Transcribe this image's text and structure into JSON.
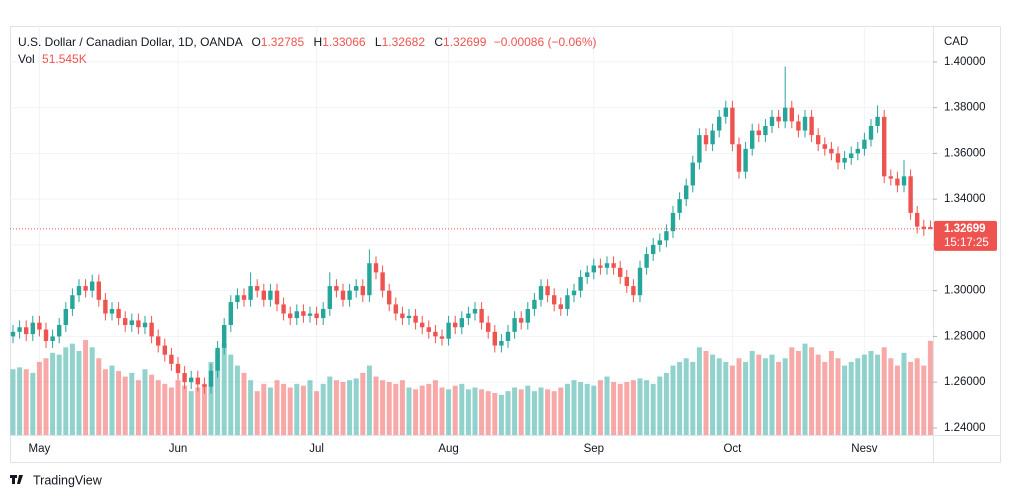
{
  "chart_data": {
    "type": "candlestick",
    "title": "U.S. Dollar / Canadian Dollar, 1D, OANDA",
    "legend_labels": {
      "open": "O",
      "high": "H",
      "low": "L",
      "close": "C",
      "volume": "Vol"
    },
    "change": "−0.00086 (−0.06%)",
    "volume_label": "51.545K",
    "y_axis_label": "CAD",
    "countdown": "15:17:25",
    "up_color": "#26a69a",
    "down_color": "#ef5350",
    "grid": true,
    "ylim": [
      1.2369,
      1.4157
    ],
    "yticks": [
      {
        "value": 1.24,
        "label": "1.24000"
      },
      {
        "value": 1.26,
        "label": "1.26000"
      },
      {
        "value": 1.28,
        "label": "1.28000"
      },
      {
        "value": 1.3,
        "label": "1.30000"
      },
      {
        "value": 1.32,
        "label": "1.32000"
      },
      {
        "value": 1.34,
        "label": "1.34000"
      },
      {
        "value": 1.36,
        "label": "1.36000"
      },
      {
        "value": 1.38,
        "label": "1.38000"
      },
      {
        "value": 1.4,
        "label": "1.40000"
      }
    ],
    "categories": [
      null,
      null,
      null,
      null,
      "May",
      null,
      null,
      null,
      null,
      null,
      null,
      null,
      null,
      null,
      null,
      null,
      null,
      null,
      null,
      null,
      null,
      null,
      null,
      null,
      null,
      "Jun",
      null,
      null,
      null,
      null,
      null,
      null,
      null,
      null,
      null,
      null,
      null,
      null,
      null,
      null,
      null,
      null,
      null,
      null,
      null,
      null,
      "Jul",
      null,
      null,
      null,
      null,
      null,
      null,
      null,
      null,
      null,
      null,
      null,
      null,
      null,
      null,
      null,
      null,
      null,
      null,
      null,
      "Aug",
      null,
      null,
      null,
      null,
      null,
      null,
      null,
      null,
      null,
      null,
      null,
      null,
      null,
      null,
      null,
      null,
      null,
      null,
      null,
      null,
      null,
      "Sep",
      null,
      null,
      null,
      null,
      null,
      null,
      null,
      null,
      null,
      null,
      null,
      null,
      null,
      null,
      null,
      null,
      null,
      null,
      null,
      null,
      "Oct",
      null,
      null,
      null,
      null,
      null,
      null,
      null,
      null,
      null,
      null,
      null,
      null,
      null,
      null,
      null,
      null,
      null,
      null,
      null,
      "Nesv",
      null,
      null,
      null,
      null,
      null,
      null,
      null,
      null,
      null,
      null
    ],
    "open": [
      1.28,
      1.282,
      1.284,
      1.281,
      1.286,
      1.283,
      1.278,
      1.28,
      1.285,
      1.292,
      1.298,
      1.302,
      1.3,
      1.304,
      1.296,
      1.29,
      1.292,
      1.288,
      1.285,
      1.287,
      1.284,
      1.286,
      1.28,
      1.276,
      1.272,
      1.268,
      1.264,
      1.26,
      1.262,
      1.259,
      1.258,
      1.265,
      1.275,
      1.285,
      1.295,
      1.298,
      1.296,
      1.302,
      1.3,
      1.296,
      1.3,
      1.294,
      1.29,
      1.288,
      1.291,
      1.289,
      1.29,
      1.288,
      1.292,
      1.302,
      1.3,
      1.296,
      1.3,
      1.302,
      1.298,
      1.312,
      1.308,
      1.3,
      1.294,
      1.29,
      1.288,
      1.289,
      1.286,
      1.284,
      1.282,
      1.28,
      1.279,
      1.286,
      1.284,
      1.288,
      1.29,
      1.292,
      1.286,
      1.282,
      1.276,
      1.278,
      1.282,
      1.288,
      1.286,
      1.292,
      1.296,
      1.302,
      1.298,
      1.294,
      1.292,
      1.298,
      1.3,
      1.306,
      1.308,
      1.311,
      1.31,
      1.312,
      1.31,
      1.306,
      1.302,
      1.298,
      1.31,
      1.316,
      1.32,
      1.322,
      1.326,
      1.334,
      1.34,
      1.346,
      1.356,
      1.368,
      1.364,
      1.37,
      1.376,
      1.38,
      1.364,
      1.352,
      1.362,
      1.37,
      1.368,
      1.372,
      1.376,
      1.374,
      1.38,
      1.374,
      1.37,
      1.376,
      1.368,
      1.364,
      1.362,
      1.36,
      1.356,
      1.358,
      1.36,
      1.362,
      1.366,
      1.372,
      1.376,
      1.35,
      1.349,
      1.346,
      1.35,
      1.334,
      1.328,
      1.32785
    ],
    "high": [
      1.285,
      1.287,
      1.287,
      1.289,
      1.289,
      1.286,
      1.283,
      1.288,
      1.295,
      1.301,
      1.305,
      1.305,
      1.307,
      1.307,
      1.299,
      1.295,
      1.295,
      1.291,
      1.29,
      1.29,
      1.289,
      1.289,
      1.283,
      1.279,
      1.275,
      1.271,
      1.267,
      1.265,
      1.265,
      1.262,
      1.268,
      1.278,
      1.288,
      1.298,
      1.301,
      1.301,
      1.308,
      1.305,
      1.303,
      1.303,
      1.303,
      1.297,
      1.293,
      1.294,
      1.294,
      1.293,
      1.293,
      1.295,
      1.308,
      1.305,
      1.303,
      1.303,
      1.305,
      1.305,
      1.318,
      1.315,
      1.311,
      1.303,
      1.297,
      1.293,
      1.292,
      1.292,
      1.289,
      1.287,
      1.285,
      1.283,
      1.289,
      1.289,
      1.291,
      1.293,
      1.295,
      1.295,
      1.289,
      1.285,
      1.281,
      1.285,
      1.291,
      1.291,
      1.295,
      1.299,
      1.305,
      1.305,
      1.301,
      1.297,
      1.301,
      1.303,
      1.309,
      1.311,
      1.314,
      1.314,
      1.315,
      1.315,
      1.313,
      1.309,
      1.305,
      1.313,
      1.319,
      1.323,
      1.325,
      1.329,
      1.337,
      1.343,
      1.349,
      1.359,
      1.371,
      1.371,
      1.373,
      1.379,
      1.383,
      1.383,
      1.367,
      1.365,
      1.373,
      1.373,
      1.375,
      1.379,
      1.379,
      1.398,
      1.383,
      1.377,
      1.379,
      1.379,
      1.371,
      1.367,
      1.365,
      1.363,
      1.361,
      1.363,
      1.365,
      1.369,
      1.375,
      1.381,
      1.379,
      1.353,
      1.352,
      1.357,
      1.353,
      1.337,
      1.331,
      1.33066
    ],
    "low": [
      1.277,
      1.279,
      1.278,
      1.278,
      1.28,
      1.275,
      1.275,
      1.277,
      1.282,
      1.289,
      1.295,
      1.297,
      1.297,
      1.293,
      1.287,
      1.287,
      1.285,
      1.282,
      1.282,
      1.281,
      1.281,
      1.277,
      1.273,
      1.269,
      1.265,
      1.261,
      1.257,
      1.257,
      1.256,
      1.255,
      1.255,
      1.262,
      1.272,
      1.282,
      1.292,
      1.293,
      1.293,
      1.297,
      1.293,
      1.293,
      1.291,
      1.287,
      1.285,
      1.285,
      1.286,
      1.286,
      1.285,
      1.285,
      1.289,
      1.297,
      1.293,
      1.293,
      1.297,
      1.295,
      1.295,
      1.305,
      1.297,
      1.291,
      1.287,
      1.285,
      1.285,
      1.283,
      1.281,
      1.279,
      1.277,
      1.276,
      1.276,
      1.281,
      1.281,
      1.285,
      1.287,
      1.283,
      1.279,
      1.273,
      1.273,
      1.275,
      1.279,
      1.283,
      1.283,
      1.289,
      1.293,
      1.295,
      1.291,
      1.289,
      1.289,
      1.295,
      1.297,
      1.303,
      1.305,
      1.307,
      1.307,
      1.307,
      1.303,
      1.299,
      1.295,
      1.295,
      1.307,
      1.313,
      1.317,
      1.319,
      1.323,
      1.331,
      1.337,
      1.343,
      1.353,
      1.361,
      1.361,
      1.367,
      1.373,
      1.361,
      1.349,
      1.349,
      1.359,
      1.365,
      1.365,
      1.369,
      1.371,
      1.371,
      1.371,
      1.367,
      1.367,
      1.365,
      1.361,
      1.359,
      1.357,
      1.353,
      1.353,
      1.355,
      1.357,
      1.359,
      1.363,
      1.369,
      1.347,
      1.346,
      1.343,
      1.343,
      1.331,
      1.325,
      1.324,
      1.32682
    ],
    "close": [
      1.282,
      1.284,
      1.281,
      1.286,
      1.283,
      1.278,
      1.28,
      1.285,
      1.292,
      1.298,
      1.302,
      1.3,
      1.304,
      1.296,
      1.29,
      1.292,
      1.288,
      1.285,
      1.287,
      1.284,
      1.286,
      1.28,
      1.276,
      1.272,
      1.268,
      1.264,
      1.26,
      1.262,
      1.259,
      1.258,
      1.265,
      1.275,
      1.285,
      1.295,
      1.298,
      1.296,
      1.302,
      1.3,
      1.296,
      1.3,
      1.294,
      1.29,
      1.288,
      1.291,
      1.289,
      1.29,
      1.288,
      1.292,
      1.302,
      1.3,
      1.296,
      1.3,
      1.302,
      1.298,
      1.312,
      1.308,
      1.3,
      1.294,
      1.29,
      1.288,
      1.289,
      1.286,
      1.284,
      1.282,
      1.28,
      1.279,
      1.286,
      1.284,
      1.288,
      1.29,
      1.292,
      1.286,
      1.282,
      1.276,
      1.278,
      1.282,
      1.288,
      1.286,
      1.292,
      1.296,
      1.302,
      1.298,
      1.294,
      1.292,
      1.298,
      1.3,
      1.306,
      1.308,
      1.311,
      1.31,
      1.312,
      1.31,
      1.306,
      1.302,
      1.298,
      1.31,
      1.316,
      1.32,
      1.322,
      1.326,
      1.334,
      1.34,
      1.346,
      1.356,
      1.368,
      1.364,
      1.37,
      1.376,
      1.38,
      1.364,
      1.352,
      1.362,
      1.37,
      1.368,
      1.372,
      1.376,
      1.374,
      1.38,
      1.374,
      1.37,
      1.376,
      1.368,
      1.364,
      1.362,
      1.36,
      1.356,
      1.358,
      1.36,
      1.362,
      1.366,
      1.372,
      1.376,
      1.35,
      1.349,
      1.346,
      1.35,
      1.334,
      1.328,
      1.327,
      1.32699
    ],
    "volume": [
      36000,
      37000,
      36000,
      34000,
      40000,
      42000,
      45000,
      44000,
      48000,
      50000,
      46000,
      52000,
      48000,
      42000,
      36000,
      38000,
      35000,
      32000,
      34000,
      30000,
      36000,
      33000,
      30000,
      28000,
      26000,
      30000,
      27000,
      24000,
      26000,
      28000,
      40000,
      46000,
      50000,
      44000,
      38000,
      34000,
      30000,
      24000,
      28000,
      26000,
      30000,
      28000,
      26000,
      28000,
      27000,
      30000,
      24000,
      28000,
      32000,
      30000,
      29000,
      30000,
      31000,
      34000,
      38000,
      32000,
      30000,
      29000,
      28000,
      30000,
      26000,
      25000,
      27000,
      28000,
      30000,
      26000,
      25000,
      27000,
      28000,
      25000,
      26000,
      25000,
      24000,
      23000,
      22000,
      24000,
      26000,
      25000,
      27000,
      24000,
      26000,
      25000,
      24000,
      26000,
      28000,
      30000,
      29000,
      28000,
      27000,
      30000,
      32000,
      29000,
      28000,
      29000,
      30000,
      31000,
      30000,
      28000,
      32000,
      34000,
      38000,
      40000,
      42000,
      40000,
      48000,
      46000,
      44000,
      42000,
      40000,
      38000,
      42000,
      40000,
      46000,
      44000,
      42000,
      44000,
      40000,
      42000,
      48000,
      46000,
      50000,
      48000,
      44000,
      40000,
      46000,
      42000,
      38000,
      40000,
      42000,
      44000,
      46000,
      44000,
      48000,
      42000,
      38000,
      45000,
      40000,
      42000,
      38000,
      51545
    ]
  },
  "footer": {
    "brand": "TradingView"
  }
}
